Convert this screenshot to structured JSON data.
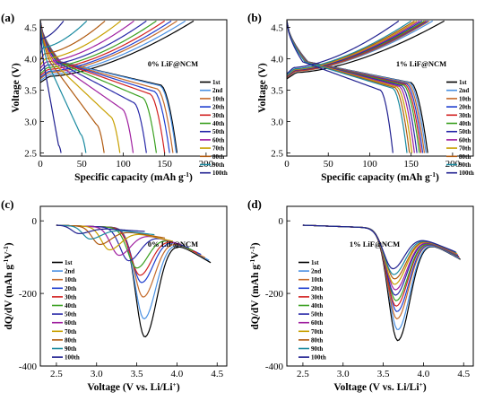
{
  "chart_data": [
    {
      "id": "a",
      "type": "line",
      "panel_label": "(a)",
      "annotation": "0% LiF@NCM",
      "xlabel": "Specific capacity (mAh g",
      "xlabel_sup": "-1",
      "xlabel_tail": ")",
      "ylabel": "Voltage (V)",
      "xlim": [
        0,
        225
      ],
      "ylim": [
        2.45,
        4.62
      ],
      "xticks": [
        "0",
        "50",
        "100",
        "150",
        "200"
      ],
      "yticks": [
        "2.5",
        "3.0",
        "3.5",
        "4.0",
        "4.5"
      ],
      "cycles": [
        "1st",
        "2nd",
        "10th",
        "20th",
        "30th",
        "40th",
        "50th",
        "60th",
        "70th",
        "80th",
        "90th",
        "100th"
      ],
      "discharge_capacity": [
        165,
        164,
        160,
        156,
        150,
        140,
        128,
        112,
        96,
        77,
        55,
        25
      ],
      "charge_capacity": [
        185,
        175,
        165,
        158,
        150,
        140,
        128,
        113,
        97,
        78,
        56,
        28
      ],
      "discharge_plateau_v": [
        3.58,
        3.57,
        3.52,
        3.48,
        3.44,
        3.38,
        3.3,
        3.2,
        3.08,
        2.95,
        2.8,
        2.62
      ],
      "charge_onset_v": [
        3.72,
        3.75,
        3.78,
        3.8,
        3.83,
        3.86,
        3.9,
        3.95,
        4.0,
        4.08,
        4.18,
        4.32
      ]
    },
    {
      "id": "b",
      "type": "line",
      "panel_label": "(b)",
      "annotation": "1% LiF@NCM",
      "xlabel": "Specific capacity (mAh g",
      "xlabel_sup": "-1",
      "xlabel_tail": ")",
      "ylabel": "Voltage (V)",
      "xlim": [
        0,
        225
      ],
      "ylim": [
        2.45,
        4.62
      ],
      "xticks": [
        "0",
        "50",
        "100",
        "150",
        "200"
      ],
      "yticks": [
        "2.5",
        "3.0",
        "3.5",
        "4.0",
        "4.5"
      ],
      "cycles": [
        "1st",
        "2nd",
        "10th",
        "20th",
        "30th",
        "40th",
        "50th",
        "60th",
        "70th",
        "80th",
        "90th",
        "100th"
      ],
      "discharge_capacity": [
        170,
        168,
        166,
        164,
        162,
        160,
        157,
        154,
        151,
        148,
        145,
        128
      ],
      "charge_capacity": [
        190,
        176,
        172,
        170,
        168,
        166,
        163,
        160,
        157,
        154,
        150,
        135
      ],
      "discharge_plateau_v": [
        3.62,
        3.62,
        3.61,
        3.6,
        3.59,
        3.58,
        3.57,
        3.56,
        3.55,
        3.54,
        3.53,
        3.5
      ],
      "charge_onset_v": [
        3.78,
        3.8,
        3.8,
        3.81,
        3.81,
        3.82,
        3.82,
        3.83,
        3.83,
        3.84,
        3.84,
        3.86
      ]
    },
    {
      "id": "c",
      "type": "line",
      "panel_label": "(c)",
      "annotation": "0% LiF@NCM",
      "xlabel": "Voltage (V vs. Li/Li",
      "xlabel_sup": "+",
      "xlabel_tail": ")",
      "ylabel": "dQ/dV (mAh g",
      "ylabel_sup": "-1",
      "ylabel_mid": "V",
      "ylabel_sup2": "-1",
      "ylabel_tail": ")",
      "xlim": [
        2.3,
        4.62
      ],
      "ylim": [
        -400,
        40
      ],
      "xticks": [
        "2.5",
        "3.0",
        "3.5",
        "4.0",
        "4.5"
      ],
      "yticks": [
        "0",
        "-200",
        "-400"
      ],
      "cycles": [
        "1st",
        "2nd",
        "10th",
        "20th",
        "30th",
        "40th",
        "50th",
        "60th",
        "70th",
        "80th",
        "90th",
        "100th"
      ],
      "peak_voltage": [
        3.6,
        3.59,
        3.58,
        3.56,
        3.54,
        3.5,
        3.4,
        3.28,
        3.16,
        3.04,
        2.92,
        2.78
      ],
      "peak_value": [
        -320,
        -270,
        -210,
        -170,
        -150,
        -130,
        -110,
        -95,
        -80,
        -65,
        -50,
        -35
      ],
      "end_voltage": [
        4.42,
        4.4,
        4.35,
        4.3,
        4.25,
        4.2,
        4.15,
        4.05,
        3.95,
        3.85,
        3.72,
        3.6
      ],
      "end_value": [
        -125,
        -118,
        -110,
        -100,
        -95,
        -88,
        -80,
        -70,
        -60,
        -50,
        -40,
        -30
      ]
    },
    {
      "id": "d",
      "type": "line",
      "panel_label": "(d)",
      "annotation": "1% LiF@NCM",
      "xlabel": "Voltage (V vs. Li/Li",
      "xlabel_sup": "+",
      "xlabel_tail": ")",
      "ylabel": "dQ/dV (mAh g",
      "ylabel_sup": "-1",
      "ylabel_mid": "V",
      "ylabel_sup2": "-1",
      "ylabel_tail": ")",
      "xlim": [
        2.3,
        4.62
      ],
      "ylim": [
        -400,
        40
      ],
      "xticks": [
        "2.5",
        "3.0",
        "3.5",
        "4.0",
        "4.5"
      ],
      "yticks": [
        "0",
        "-200",
        "-400"
      ],
      "cycles": [
        "1st",
        "2nd",
        "10th",
        "20th",
        "30th",
        "40th",
        "50th",
        "60th",
        "70th",
        "80th",
        "90th",
        "100th"
      ],
      "peak_voltage": [
        3.68,
        3.68,
        3.67,
        3.67,
        3.66,
        3.66,
        3.65,
        3.65,
        3.64,
        3.64,
        3.63,
        3.62
      ],
      "peak_value": [
        -330,
        -300,
        -270,
        -250,
        -235,
        -220,
        -205,
        -190,
        -175,
        -160,
        -148,
        -132
      ],
      "end_voltage": [
        4.46,
        4.45,
        4.45,
        4.44,
        4.44,
        4.43,
        4.43,
        4.42,
        4.42,
        4.41,
        4.41,
        4.4
      ],
      "end_value": [
        -115,
        -112,
        -110,
        -108,
        -106,
        -104,
        -102,
        -100,
        -98,
        -96,
        -94,
        -92
      ]
    }
  ],
  "series_colors": [
    "#000000",
    "#4a90e2",
    "#c46a2a",
    "#1f3fd0",
    "#d22020",
    "#3aa020",
    "#2828a8",
    "#a020a0",
    "#c8a000",
    "#b05a10",
    "#1a8aa0",
    "#202090"
  ]
}
